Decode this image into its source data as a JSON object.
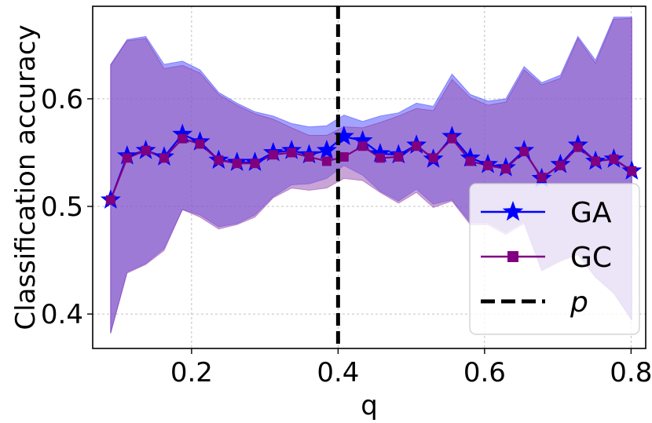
{
  "chart_data": {
    "type": "line",
    "xlabel": "q",
    "ylabel": "Classification accuracy",
    "xlim": [
      0.065,
      0.82
    ],
    "ylim": [
      0.368,
      0.686
    ],
    "xticks": [
      0.2,
      0.4,
      0.6,
      0.8
    ],
    "xtick_labels": [
      "0.2",
      "0.4",
      "0.6",
      "0.8"
    ],
    "yticks": [
      0.4,
      0.5,
      0.6
    ],
    "ytick_labels": [
      "0.4",
      "0.5",
      "0.6"
    ],
    "grid": true,
    "legend_position": "lower-right",
    "x": [
      0.0895,
      0.112,
      0.1375,
      0.1625,
      0.1875,
      0.2115,
      0.237,
      0.262,
      0.2865,
      0.3115,
      0.3365,
      0.3605,
      0.3845,
      0.408,
      0.4335,
      0.4575,
      0.4825,
      0.507,
      0.53,
      0.5555,
      0.5805,
      0.6045,
      0.629,
      0.654,
      0.678,
      0.7035,
      0.7275,
      0.7515,
      0.7765,
      0.801
    ],
    "series": [
      {
        "name": "GA",
        "color": "#0000ff",
        "fill_color": "#5555ff",
        "marker": "star",
        "values": [
          0.506,
          0.547,
          0.552,
          0.546,
          0.567,
          0.56,
          0.543,
          0.541,
          0.541,
          0.55,
          0.552,
          0.548,
          0.552,
          0.565,
          0.561,
          0.549,
          0.548,
          0.557,
          0.544,
          0.565,
          0.545,
          0.539,
          0.536,
          0.552,
          0.526,
          0.539,
          0.557,
          0.542,
          0.544,
          0.533
        ],
        "upper": [
          0.632,
          0.655,
          0.658,
          0.632,
          0.635,
          0.627,
          0.606,
          0.596,
          0.588,
          0.584,
          0.577,
          0.574,
          0.575,
          0.585,
          0.579,
          0.584,
          0.587,
          0.596,
          0.593,
          0.623,
          0.604,
          0.598,
          0.6,
          0.63,
          0.615,
          0.622,
          0.658,
          0.636,
          0.676,
          0.676
        ],
        "lower": [
          0.382,
          0.439,
          0.447,
          0.461,
          0.497,
          0.492,
          0.481,
          0.484,
          0.492,
          0.509,
          0.52,
          0.521,
          0.526,
          0.538,
          0.529,
          0.514,
          0.505,
          0.516,
          0.502,
          0.506,
          0.485,
          0.485,
          0.476,
          0.486,
          0.441,
          0.45,
          0.456,
          0.435,
          0.42,
          0.395
        ]
      },
      {
        "name": "GC",
        "color": "#800080",
        "fill_color": "#9b59b6",
        "marker": "square",
        "values": [
          0.506,
          0.545,
          0.552,
          0.545,
          0.563,
          0.558,
          0.543,
          0.54,
          0.54,
          0.548,
          0.55,
          0.546,
          0.542,
          0.546,
          0.556,
          0.545,
          0.546,
          0.556,
          0.545,
          0.563,
          0.542,
          0.538,
          0.535,
          0.551,
          0.527,
          0.538,
          0.555,
          0.542,
          0.544,
          0.533
        ],
        "upper": [
          0.631,
          0.654,
          0.656,
          0.628,
          0.631,
          0.624,
          0.604,
          0.594,
          0.586,
          0.581,
          0.573,
          0.566,
          0.566,
          0.574,
          0.573,
          0.578,
          0.584,
          0.591,
          0.589,
          0.618,
          0.601,
          0.594,
          0.597,
          0.627,
          0.613,
          0.619,
          0.656,
          0.633,
          0.674,
          0.675
        ],
        "lower": [
          0.382,
          0.438,
          0.446,
          0.459,
          0.497,
          0.49,
          0.479,
          0.483,
          0.49,
          0.508,
          0.517,
          0.515,
          0.517,
          0.526,
          0.524,
          0.513,
          0.503,
          0.513,
          0.499,
          0.505,
          0.483,
          0.483,
          0.474,
          0.484,
          0.44,
          0.449,
          0.455,
          0.434,
          0.419,
          0.394
        ]
      }
    ],
    "reference_line": {
      "name": "p",
      "x": 0.4,
      "color": "#000000",
      "style": "dashed"
    }
  }
}
